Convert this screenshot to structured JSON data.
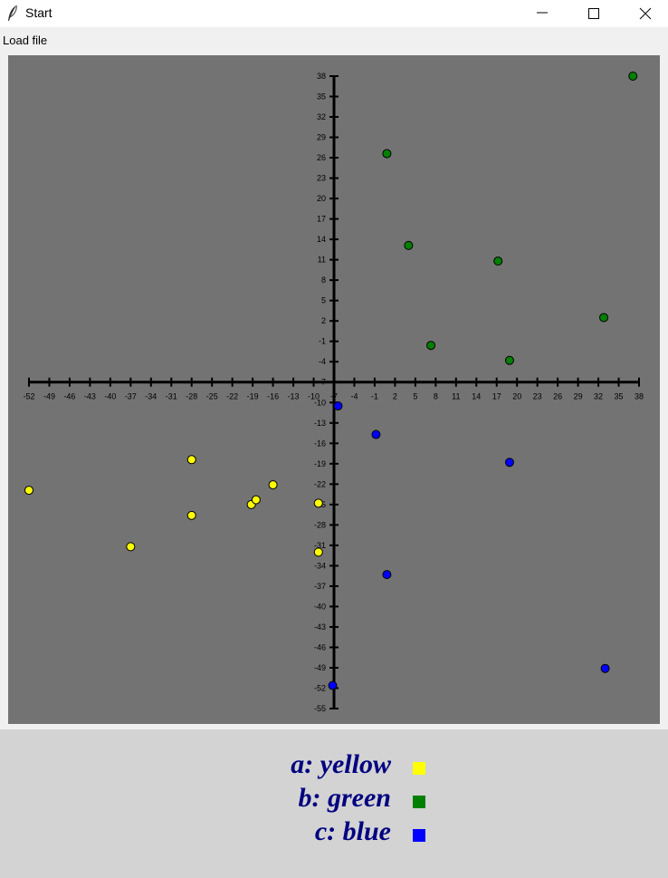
{
  "window": {
    "title": "Start",
    "icon": "feather-icon",
    "controls": [
      "minimize-icon",
      "maximize-icon",
      "close-icon"
    ]
  },
  "menu": {
    "items": [
      "Load file"
    ]
  },
  "chart_data": {
    "type": "scatter",
    "title": "",
    "xlabel": "",
    "ylabel": "",
    "xlim": [
      -52,
      38
    ],
    "ylim": [
      -55,
      38
    ],
    "x_ticks": [
      -52,
      -49,
      -46,
      -43,
      -40,
      -37,
      -34,
      -31,
      -28,
      -25,
      -22,
      -19,
      -16,
      -13,
      -10,
      -7,
      -4,
      -1,
      2,
      5,
      8,
      11,
      14,
      17,
      20,
      23,
      26,
      29,
      32,
      35,
      38
    ],
    "y_ticks": [
      38,
      35,
      32,
      29,
      26,
      23,
      20,
      17,
      14,
      11,
      8,
      5,
      2,
      -1,
      -4,
      -7,
      -10,
      -13,
      -16,
      -19,
      -22,
      -25,
      -28,
      -31,
      -34,
      -37,
      -40,
      -43,
      -46,
      -49,
      -52,
      -55
    ],
    "x_tick_labels": [
      "-52",
      "-49",
      "-46",
      "-43",
      "-40",
      "-37",
      "-34",
      "-31",
      "-28",
      "-25",
      "-22",
      "-19",
      "-16",
      "-13",
      "-10",
      "-7",
      "-4",
      "-1",
      "2",
      "5",
      "8",
      "11",
      "14",
      "17",
      "20",
      "23",
      "26",
      "29",
      "32",
      "35",
      "38"
    ],
    "y_tick_labels": [
      "38",
      "35",
      "32",
      "29",
      "26",
      "23",
      "20",
      "17",
      "14",
      "11",
      "8",
      "5",
      "2",
      "-1",
      "-4",
      "-7",
      "-10",
      "-13",
      "-16",
      "-19",
      "-22",
      "-25",
      "-28",
      "-31",
      "-34",
      "-37",
      "-40",
      "-43",
      "-46",
      "-49",
      "-52",
      "-55"
    ],
    "background": "#737373",
    "series": [
      {
        "name": "a",
        "color": "#ffff00",
        "points": [
          [
            -52,
            -22.9
          ],
          [
            -37,
            -31.2
          ],
          [
            -28,
            -18.4
          ],
          [
            -28,
            -26.6
          ],
          [
            -19.2,
            -25
          ],
          [
            -18.5,
            -24.3
          ],
          [
            -16,
            -22.1
          ],
          [
            -9.3,
            -24.8
          ],
          [
            -9.3,
            -32
          ]
        ]
      },
      {
        "name": "b",
        "color": "#008000",
        "points": [
          [
            0.8,
            26.6
          ],
          [
            4,
            13.1
          ],
          [
            7.3,
            -1.6
          ],
          [
            17.2,
            10.8
          ],
          [
            18.9,
            -3.8
          ],
          [
            32.8,
            2.5
          ],
          [
            37.1,
            38
          ]
        ]
      },
      {
        "name": "c",
        "color": "#0000ff",
        "points": [
          [
            -6.4,
            -10.5
          ],
          [
            -0.8,
            -14.7
          ],
          [
            0.8,
            -35.3
          ],
          [
            18.9,
            -18.8
          ],
          [
            33,
            -49.1
          ],
          [
            -7.2,
            -51.6
          ]
        ]
      }
    ],
    "legend": {
      "position": "below",
      "entries": [
        {
          "label": "a: yellow",
          "color": "#ffff00"
        },
        {
          "label": "b: green",
          "color": "#008000"
        },
        {
          "label": "c: blue",
          "color": "#0000ff"
        }
      ]
    }
  }
}
